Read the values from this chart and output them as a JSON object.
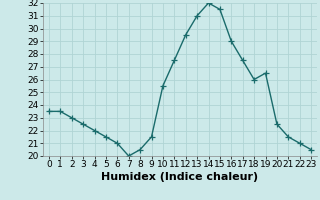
{
  "x": [
    0,
    1,
    2,
    3,
    4,
    5,
    6,
    7,
    8,
    9,
    10,
    11,
    12,
    13,
    14,
    15,
    16,
    17,
    18,
    19,
    20,
    21,
    22,
    23
  ],
  "y": [
    23.5,
    23.5,
    23.0,
    22.5,
    22.0,
    21.5,
    21.0,
    20.0,
    20.5,
    21.5,
    25.5,
    27.5,
    29.5,
    31.0,
    32.0,
    31.5,
    29.0,
    27.5,
    26.0,
    26.5,
    22.5,
    21.5,
    21.0,
    20.5
  ],
  "line_color": "#1a6b6b",
  "marker": "+",
  "marker_size": 4,
  "bg_color": "#cce9e9",
  "grid_color": "#b0d4d4",
  "xlabel": "Humidex (Indice chaleur)",
  "ylim": [
    20,
    32
  ],
  "xlim": [
    -0.5,
    23.5
  ],
  "yticks": [
    20,
    21,
    22,
    23,
    24,
    25,
    26,
    27,
    28,
    29,
    30,
    31,
    32
  ],
  "xticks": [
    0,
    1,
    2,
    3,
    4,
    5,
    6,
    7,
    8,
    9,
    10,
    11,
    12,
    13,
    14,
    15,
    16,
    17,
    18,
    19,
    20,
    21,
    22,
    23
  ],
  "tick_label_fontsize": 6.5,
  "xlabel_fontsize": 8,
  "linewidth": 1.0,
  "markeredgewidth": 0.9
}
